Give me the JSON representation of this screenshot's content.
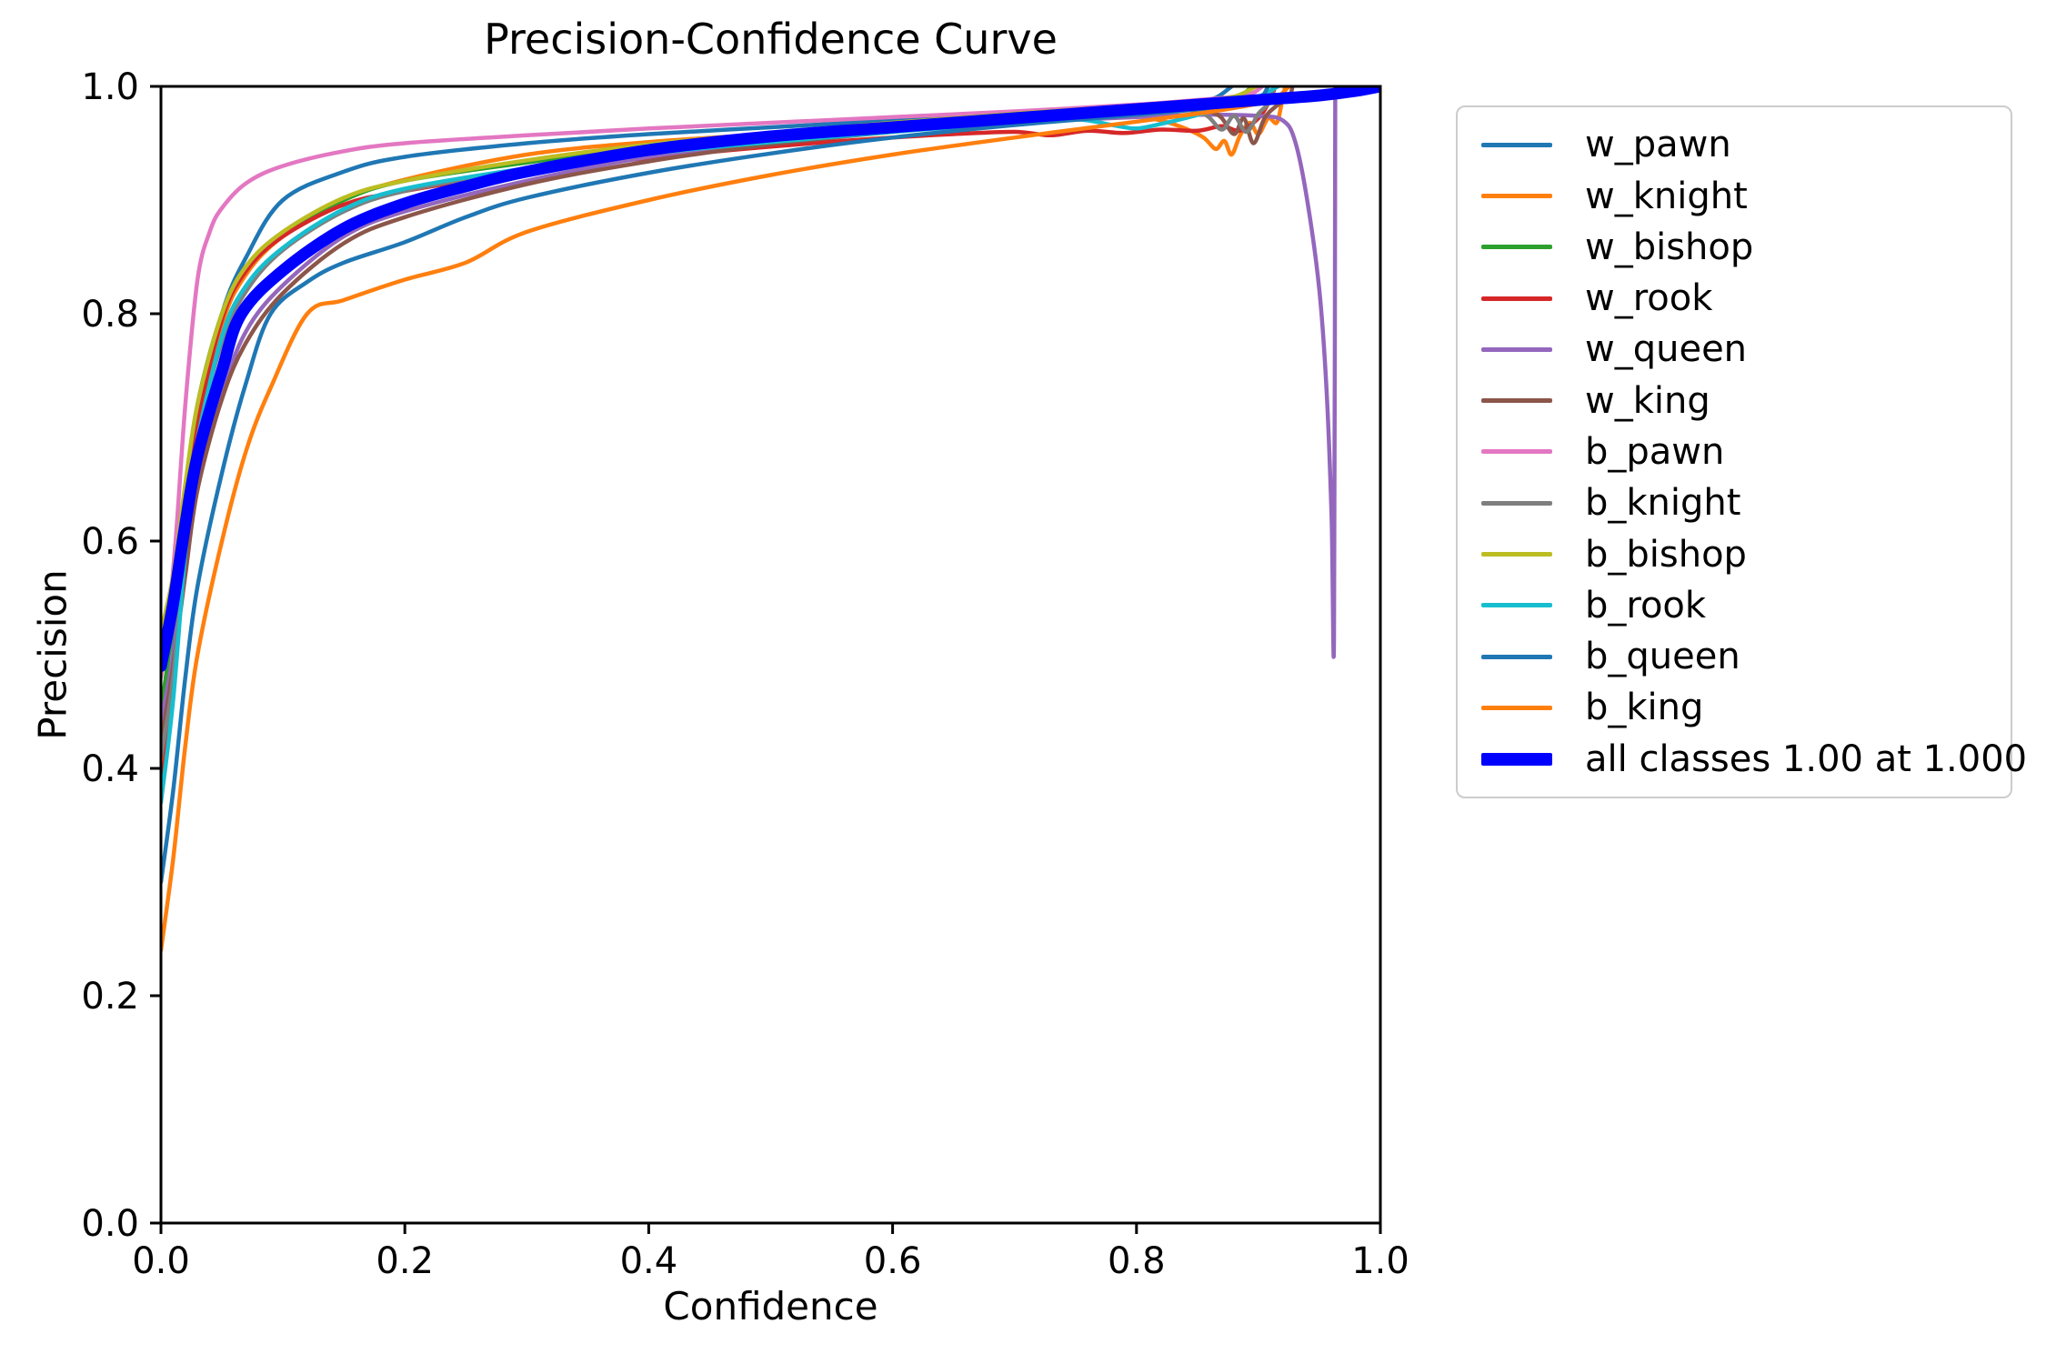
{
  "chart_data": {
    "type": "line",
    "title": "Precision-Confidence Curve",
    "xlabel": "Confidence",
    "ylabel": "Precision",
    "xlim": [
      0.0,
      1.0
    ],
    "ylim": [
      0.0,
      1.0
    ],
    "grid": false,
    "legend_position": "outside-right",
    "x_ticks": [
      "0.0",
      "0.2",
      "0.4",
      "0.6",
      "0.8",
      "1.0"
    ],
    "y_ticks": [
      "0.0",
      "0.2",
      "0.4",
      "0.6",
      "0.8",
      "1.0"
    ],
    "series": [
      {
        "name": "w_pawn",
        "color": "#1f77b4",
        "width": "thin",
        "points": [
          [
            0,
            0.42
          ],
          [
            0.01,
            0.5
          ],
          [
            0.02,
            0.62
          ],
          [
            0.03,
            0.71
          ],
          [
            0.05,
            0.8
          ],
          [
            0.07,
            0.85
          ],
          [
            0.1,
            0.9
          ],
          [
            0.15,
            0.925
          ],
          [
            0.2,
            0.938
          ],
          [
            0.3,
            0.95
          ],
          [
            0.4,
            0.958
          ],
          [
            0.5,
            0.964
          ],
          [
            0.6,
            0.97
          ],
          [
            0.7,
            0.976
          ],
          [
            0.8,
            0.983
          ],
          [
            0.83,
            0.985
          ],
          [
            0.85,
            0.987
          ],
          [
            0.865,
            0.99
          ],
          [
            0.878,
            1.0
          ]
        ]
      },
      {
        "name": "w_knight",
        "color": "#ff7f0e",
        "width": "thin",
        "points": [
          [
            0,
            0.4
          ],
          [
            0.01,
            0.48
          ],
          [
            0.02,
            0.6
          ],
          [
            0.03,
            0.69
          ],
          [
            0.05,
            0.79
          ],
          [
            0.07,
            0.835
          ],
          [
            0.1,
            0.868
          ],
          [
            0.15,
            0.9
          ],
          [
            0.2,
            0.918
          ],
          [
            0.3,
            0.94
          ],
          [
            0.4,
            0.951
          ],
          [
            0.5,
            0.958
          ],
          [
            0.6,
            0.965
          ],
          [
            0.7,
            0.971
          ],
          [
            0.75,
            0.974
          ],
          [
            0.78,
            0.976
          ],
          [
            0.8,
            0.974
          ],
          [
            0.82,
            0.97
          ],
          [
            0.84,
            0.963
          ],
          [
            0.855,
            0.955
          ],
          [
            0.865,
            0.945
          ],
          [
            0.872,
            0.952
          ],
          [
            0.878,
            0.94
          ],
          [
            0.885,
            0.957
          ],
          [
            0.893,
            0.968
          ],
          [
            0.9,
            0.958
          ],
          [
            0.908,
            0.972
          ],
          [
            0.915,
            0.968
          ],
          [
            0.919,
            0.985
          ],
          [
            0.922,
            1.0
          ]
        ]
      },
      {
        "name": "w_bishop",
        "color": "#2ca02c",
        "width": "thin",
        "points": [
          [
            0,
            0.45
          ],
          [
            0.01,
            0.53
          ],
          [
            0.02,
            0.64
          ],
          [
            0.03,
            0.72
          ],
          [
            0.05,
            0.8
          ],
          [
            0.07,
            0.84
          ],
          [
            0.1,
            0.87
          ],
          [
            0.15,
            0.9
          ],
          [
            0.2,
            0.917
          ],
          [
            0.3,
            0.933
          ],
          [
            0.4,
            0.947
          ],
          [
            0.5,
            0.957
          ],
          [
            0.6,
            0.966
          ],
          [
            0.7,
            0.974
          ],
          [
            0.8,
            0.982
          ],
          [
            0.85,
            0.986
          ],
          [
            0.88,
            0.989
          ],
          [
            0.895,
            1.0
          ]
        ]
      },
      {
        "name": "w_rook",
        "color": "#d62728",
        "width": "thin",
        "points": [
          [
            0,
            0.38
          ],
          [
            0.01,
            0.47
          ],
          [
            0.02,
            0.6
          ],
          [
            0.03,
            0.7
          ],
          [
            0.05,
            0.795
          ],
          [
            0.07,
            0.838
          ],
          [
            0.1,
            0.868
          ],
          [
            0.15,
            0.896
          ],
          [
            0.2,
            0.908
          ],
          [
            0.3,
            0.925
          ],
          [
            0.4,
            0.937
          ],
          [
            0.5,
            0.947
          ],
          [
            0.6,
            0.955
          ],
          [
            0.65,
            0.958
          ],
          [
            0.7,
            0.96
          ],
          [
            0.73,
            0.957
          ],
          [
            0.76,
            0.961
          ],
          [
            0.79,
            0.959
          ],
          [
            0.82,
            0.962
          ],
          [
            0.85,
            0.961
          ],
          [
            0.87,
            0.965
          ],
          [
            0.885,
            0.961
          ],
          [
            0.9,
            0.972
          ],
          [
            0.908,
            0.985
          ],
          [
            0.914,
            1.0
          ]
        ]
      },
      {
        "name": "w_queen",
        "color": "#9467bd",
        "width": "thin",
        "points": [
          [
            0,
            0.44
          ],
          [
            0.01,
            0.5
          ],
          [
            0.02,
            0.58
          ],
          [
            0.03,
            0.65
          ],
          [
            0.05,
            0.73
          ],
          [
            0.07,
            0.785
          ],
          [
            0.1,
            0.825
          ],
          [
            0.15,
            0.868
          ],
          [
            0.2,
            0.89
          ],
          [
            0.3,
            0.917
          ],
          [
            0.4,
            0.938
          ],
          [
            0.5,
            0.951
          ],
          [
            0.6,
            0.961
          ],
          [
            0.7,
            0.968
          ],
          [
            0.8,
            0.973
          ],
          [
            0.85,
            0.975
          ],
          [
            0.9,
            0.974
          ],
          [
            0.92,
            0.97
          ],
          [
            0.93,
            0.952
          ],
          [
            0.94,
            0.9
          ],
          [
            0.95,
            0.82
          ],
          [
            0.956,
            0.73
          ],
          [
            0.96,
            0.62
          ],
          [
            0.962,
            0.515
          ],
          [
            0.963,
            1.0
          ]
        ]
      },
      {
        "name": "w_king",
        "color": "#8c564b",
        "width": "thin",
        "points": [
          [
            0,
            0.42
          ],
          [
            0.01,
            0.49
          ],
          [
            0.02,
            0.57
          ],
          [
            0.03,
            0.645
          ],
          [
            0.05,
            0.725
          ],
          [
            0.07,
            0.775
          ],
          [
            0.1,
            0.818
          ],
          [
            0.15,
            0.862
          ],
          [
            0.2,
            0.885
          ],
          [
            0.3,
            0.914
          ],
          [
            0.4,
            0.934
          ],
          [
            0.5,
            0.949
          ],
          [
            0.6,
            0.96
          ],
          [
            0.7,
            0.969
          ],
          [
            0.8,
            0.976
          ],
          [
            0.85,
            0.979
          ],
          [
            0.868,
            0.974
          ],
          [
            0.88,
            0.958
          ],
          [
            0.888,
            0.972
          ],
          [
            0.896,
            0.95
          ],
          [
            0.905,
            0.972
          ],
          [
            0.915,
            0.983
          ],
          [
            0.925,
            0.99
          ],
          [
            0.928,
            1.0
          ]
        ]
      },
      {
        "name": "b_pawn",
        "color": "#e377c2",
        "width": "thin",
        "points": [
          [
            0,
            0.48
          ],
          [
            0.005,
            0.52
          ],
          [
            0.012,
            0.6
          ],
          [
            0.02,
            0.72
          ],
          [
            0.03,
            0.83
          ],
          [
            0.04,
            0.872
          ],
          [
            0.05,
            0.893
          ],
          [
            0.07,
            0.915
          ],
          [
            0.1,
            0.93
          ],
          [
            0.15,
            0.943
          ],
          [
            0.2,
            0.95
          ],
          [
            0.3,
            0.957
          ],
          [
            0.4,
            0.963
          ],
          [
            0.5,
            0.968
          ],
          [
            0.6,
            0.973
          ],
          [
            0.7,
            0.978
          ],
          [
            0.8,
            0.984
          ],
          [
            0.85,
            0.988
          ],
          [
            0.88,
            0.991
          ],
          [
            0.895,
            0.994
          ],
          [
            0.903,
            1.0
          ]
        ]
      },
      {
        "name": "b_knight",
        "color": "#7f7f7f",
        "width": "thin",
        "points": [
          [
            0,
            0.41
          ],
          [
            0.01,
            0.48
          ],
          [
            0.02,
            0.6
          ],
          [
            0.03,
            0.69
          ],
          [
            0.05,
            0.775
          ],
          [
            0.07,
            0.82
          ],
          [
            0.1,
            0.856
          ],
          [
            0.15,
            0.89
          ],
          [
            0.2,
            0.908
          ],
          [
            0.3,
            0.927
          ],
          [
            0.4,
            0.942
          ],
          [
            0.5,
            0.953
          ],
          [
            0.6,
            0.963
          ],
          [
            0.7,
            0.972
          ],
          [
            0.8,
            0.979
          ],
          [
            0.84,
            0.982
          ],
          [
            0.858,
            0.974
          ],
          [
            0.87,
            0.962
          ],
          [
            0.88,
            0.974
          ],
          [
            0.89,
            0.96
          ],
          [
            0.9,
            0.976
          ],
          [
            0.908,
            0.985
          ],
          [
            0.913,
            1.0
          ]
        ]
      },
      {
        "name": "b_bishop",
        "color": "#bcbd22",
        "width": "thin",
        "points": [
          [
            0,
            0.52
          ],
          [
            0.01,
            0.57
          ],
          [
            0.02,
            0.65
          ],
          [
            0.03,
            0.72
          ],
          [
            0.05,
            0.8
          ],
          [
            0.07,
            0.842
          ],
          [
            0.1,
            0.872
          ],
          [
            0.15,
            0.902
          ],
          [
            0.2,
            0.917
          ],
          [
            0.3,
            0.935
          ],
          [
            0.4,
            0.949
          ],
          [
            0.5,
            0.959
          ],
          [
            0.6,
            0.968
          ],
          [
            0.7,
            0.976
          ],
          [
            0.8,
            0.983
          ],
          [
            0.85,
            0.987
          ],
          [
            0.88,
            0.991
          ],
          [
            0.898,
            1.0
          ]
        ]
      },
      {
        "name": "b_rook",
        "color": "#17becf",
        "width": "thin",
        "points": [
          [
            0,
            0.37
          ],
          [
            0.01,
            0.46
          ],
          [
            0.02,
            0.59
          ],
          [
            0.03,
            0.685
          ],
          [
            0.05,
            0.78
          ],
          [
            0.07,
            0.825
          ],
          [
            0.1,
            0.858
          ],
          [
            0.15,
            0.892
          ],
          [
            0.2,
            0.91
          ],
          [
            0.3,
            0.928
          ],
          [
            0.4,
            0.941
          ],
          [
            0.5,
            0.951
          ],
          [
            0.6,
            0.96
          ],
          [
            0.7,
            0.968
          ],
          [
            0.75,
            0.971
          ],
          [
            0.78,
            0.966
          ],
          [
            0.8,
            0.963
          ],
          [
            0.82,
            0.967
          ],
          [
            0.84,
            0.972
          ],
          [
            0.86,
            0.978
          ],
          [
            0.88,
            0.985
          ],
          [
            0.9,
            0.991
          ],
          [
            0.916,
            1.0
          ]
        ]
      },
      {
        "name": "b_queen",
        "color": "#1f77b4",
        "width": "thin",
        "points": [
          [
            0,
            0.3
          ],
          [
            0.01,
            0.38
          ],
          [
            0.02,
            0.48
          ],
          [
            0.03,
            0.56
          ],
          [
            0.05,
            0.66
          ],
          [
            0.07,
            0.74
          ],
          [
            0.09,
            0.8
          ],
          [
            0.12,
            0.828
          ],
          [
            0.15,
            0.845
          ],
          [
            0.2,
            0.863
          ],
          [
            0.25,
            0.885
          ],
          [
            0.3,
            0.902
          ],
          [
            0.4,
            0.924
          ],
          [
            0.5,
            0.941
          ],
          [
            0.6,
            0.955
          ],
          [
            0.7,
            0.966
          ],
          [
            0.8,
            0.975
          ],
          [
            0.85,
            0.98
          ],
          [
            0.88,
            0.984
          ],
          [
            0.9,
            0.988
          ],
          [
            0.908,
            1.0
          ]
        ]
      },
      {
        "name": "b_king",
        "color": "#ff7f0e",
        "width": "thin",
        "points": [
          [
            0,
            0.24
          ],
          [
            0.01,
            0.32
          ],
          [
            0.02,
            0.42
          ],
          [
            0.03,
            0.5
          ],
          [
            0.05,
            0.6
          ],
          [
            0.07,
            0.68
          ],
          [
            0.09,
            0.735
          ],
          [
            0.12,
            0.8
          ],
          [
            0.15,
            0.812
          ],
          [
            0.2,
            0.83
          ],
          [
            0.25,
            0.845
          ],
          [
            0.3,
            0.872
          ],
          [
            0.4,
            0.9
          ],
          [
            0.5,
            0.922
          ],
          [
            0.6,
            0.94
          ],
          [
            0.7,
            0.955
          ],
          [
            0.8,
            0.969
          ],
          [
            0.85,
            0.976
          ],
          [
            0.88,
            0.981
          ],
          [
            0.9,
            0.985
          ],
          [
            0.915,
            0.99
          ],
          [
            0.925,
            1.0
          ]
        ]
      },
      {
        "name": "all classes 1.00 at 1.000",
        "color": "#0000ff",
        "width": "thick",
        "points": [
          [
            0,
            0.49
          ],
          [
            0.01,
            0.545
          ],
          [
            0.02,
            0.615
          ],
          [
            0.03,
            0.675
          ],
          [
            0.05,
            0.75
          ],
          [
            0.066,
            0.8
          ],
          [
            0.1,
            0.838
          ],
          [
            0.15,
            0.875
          ],
          [
            0.2,
            0.897
          ],
          [
            0.25,
            0.912
          ],
          [
            0.3,
            0.925
          ],
          [
            0.4,
            0.944
          ],
          [
            0.5,
            0.956
          ],
          [
            0.6,
            0.964
          ],
          [
            0.7,
            0.972
          ],
          [
            0.8,
            0.98
          ],
          [
            0.85,
            0.984
          ],
          [
            0.9,
            0.988
          ],
          [
            0.95,
            0.992
          ],
          [
            0.98,
            0.996
          ],
          [
            1.0,
            1.0
          ]
        ]
      }
    ]
  }
}
